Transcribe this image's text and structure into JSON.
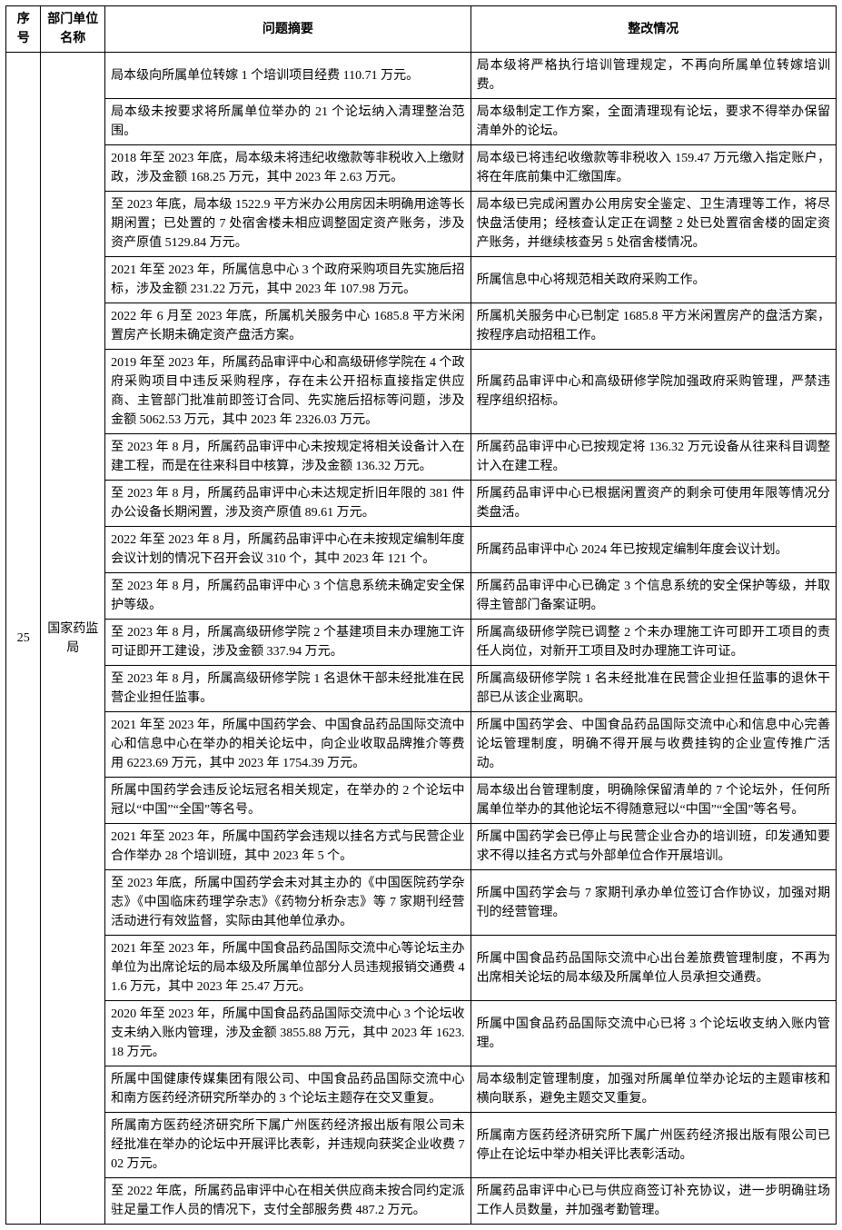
{
  "headers": {
    "seq": "序号",
    "dept": "部门单位名称",
    "issue": "问题摘要",
    "rectify": "整改情况"
  },
  "seq_value": "25",
  "dept_value": "国家药监局",
  "rows": [
    {
      "issue": "局本级向所属单位转嫁 1 个培训项目经费 110.71 万元。",
      "rectify": "局本级将严格执行培训管理规定，不再向所属单位转嫁培训费。"
    },
    {
      "issue": "局本级未按要求将所属单位举办的 21 个论坛纳入清理整治范围。",
      "rectify": "局本级制定工作方案，全面清理现有论坛，要求不得举办保留清单外的论坛。"
    },
    {
      "issue": "2018 年至 2023 年底，局本级未将违纪收缴款等非税收入上缴财政，涉及金额 168.25 万元，其中 2023 年 2.63 万元。",
      "rectify": "局本级已将违纪收缴款等非税收入 159.47 万元缴入指定账户，将在年底前集中汇缴国库。"
    },
    {
      "issue": "至 2023 年底，局本级 1522.9 平方米办公用房因未明确用途等长期闲置；已处置的 7 处宿舍楼未相应调整固定资产账务，涉及资产原值 5129.84 万元。",
      "rectify": "局本级已完成闲置办公用房安全鉴定、卫生清理等工作，将尽快盘活使用；经核查认定正在调整 2 处已处置宿舍楼的固定资产账务，并继续核查另 5 处宿舍楼情况。"
    },
    {
      "issue": "2021 年至 2023 年，所属信息中心 3 个政府采购项目先实施后招标，涉及金额 231.22 万元，其中 2023 年 107.98 万元。",
      "rectify": "所属信息中心将规范相关政府采购工作。"
    },
    {
      "issue": "2022 年 6 月至 2023 年底，所属机关服务中心 1685.8 平方米闲置房产长期未确定资产盘活方案。",
      "rectify": "所属机关服务中心已制定 1685.8 平方米闲置房产的盘活方案，按程序启动招租工作。"
    },
    {
      "issue": "2019 年至 2023 年，所属药品审评中心和高级研修学院在 4 个政府采购项目中违反采购程序，存在未公开招标直接指定供应商、主管部门批准前即签订合同、先实施后招标等问题，涉及金额 5062.53 万元，其中 2023 年 2326.03 万元。",
      "rectify": "所属药品审评中心和高级研修学院加强政府采购管理，严禁违程序组织招标。"
    },
    {
      "issue": "至 2023 年 8 月，所属药品审评中心未按规定将相关设备计入在建工程，而是在往来科目中核算，涉及金额 136.32 万元。",
      "rectify": "所属药品审评中心已按规定将 136.32 万元设备从往来科目调整计入在建工程。"
    },
    {
      "issue": "至 2023 年 8 月，所属药品审评中心未达规定折旧年限的 381 件办公设备长期闲置，涉及资产原值 89.61 万元。",
      "rectify": "所属药品审评中心已根据闲置资产的剩余可使用年限等情况分类盘活。"
    },
    {
      "issue": "2022 年至 2023 年 8 月，所属药品审评中心在未按规定编制年度会议计划的情况下召开会议 310 个，其中 2023 年 121 个。",
      "rectify": "所属药品审评中心 2024 年已按规定编制年度会议计划。"
    },
    {
      "issue": "至 2023 年 8 月，所属药品审评中心 3 个信息系统未确定安全保护等级。",
      "rectify": "所属药品审评中心已确定 3 个信息系统的安全保护等级，并取得主管部门备案证明。"
    },
    {
      "issue": "至 2023 年 8 月，所属高级研修学院 2 个基建项目未办理施工许可证即开工建设，涉及金额 337.94 万元。",
      "rectify": "所属高级研修学院已调整 2 个未办理施工许可即开工项目的责任人岗位，对新开工项目及时办理施工许可证。"
    },
    {
      "issue": "至 2023 年 8 月，所属高级研修学院 1 名退休干部未经批准在民营企业担任监事。",
      "rectify": "所属高级研修学院 1 名未经批准在民营企业担任监事的退休干部已从该企业离职。"
    },
    {
      "issue": "2021 年至 2023 年，所属中国药学会、中国食品药品国际交流中心和信息中心在举办的相关论坛中，向企业收取品牌推介等费用 6223.69 万元，其中 2023 年 1754.39 万元。",
      "rectify": "所属中国药学会、中国食品药品国际交流中心和信息中心完善论坛管理制度，明确不得开展与收费挂钩的企业宣传推广活动。"
    },
    {
      "issue": "所属中国药学会违反论坛冠名相关规定，在举办的 2 个论坛中冠以“中国”“全国”等名号。",
      "rectify": "局本级出台管理制度，明确除保留清单的 7 个论坛外，任何所属单位举办的其他论坛不得随意冠以“中国”“全国”等名号。"
    },
    {
      "issue": "2021 年至 2023 年，所属中国药学会违规以挂名方式与民营企业合作举办 28 个培训班，其中 2023 年 5 个。",
      "rectify": "所属中国药学会已停止与民营企业合办的培训班，印发通知要求不得以挂名方式与外部单位合作开展培训。"
    },
    {
      "issue": "至 2023 年底，所属中国药学会未对其主办的《中国医院药学杂志》《中国临床药理学杂志》《药物分析杂志》等 7 家期刊经营活动进行有效监督，实际由其他单位承办。",
      "rectify": "所属中国药学会与 7 家期刊承办单位签订合作协议，加强对期刊的经营管理。"
    },
    {
      "issue": "2021 年至 2023 年，所属中国食品药品国际交流中心等论坛主办单位为出席论坛的局本级及所属单位部分人员违规报销交通费 41.6 万元，其中 2023 年 25.47 万元。",
      "rectify": "所属中国食品药品国际交流中心出台差旅费管理制度，不再为出席相关论坛的局本级及所属单位人员承担交通费。"
    },
    {
      "issue": "2020 年至 2023 年，所属中国食品药品国际交流中心 3 个论坛收支未纳入账内管理，涉及金额 3855.88 万元，其中 2023 年 1623.18 万元。",
      "rectify": "所属中国食品药品国际交流中心已将 3 个论坛收支纳入账内管理。"
    },
    {
      "issue": "所属中国健康传媒集团有限公司、中国食品药品国际交流中心和南方医药经济研究所举办的 3 个论坛主题存在交叉重复。",
      "rectify": "局本级制定管理制度，加强对所属单位举办论坛的主题审核和横向联系，避免主题交叉重复。"
    },
    {
      "issue": "所属南方医药经济研究所下属广州医药经济报出版有限公司未经批准在举办的论坛中开展评比表彰，并违规向获奖企业收费 702 万元。",
      "rectify": "所属南方医药经济研究所下属广州医药经济报出版有限公司已停止在论坛中举办相关评比表彰活动。"
    },
    {
      "issue": "至 2022 年底，所属药品审评中心在相关供应商未按合同约定派驻足量工作人员的情况下，支付全部服务费 487.2 万元。",
      "rectify": "所属药品审评中心已与供应商签订补充协议，进一步明确驻场工作人员数量，并加强考勤管理。"
    }
  ],
  "style": {
    "font_family": "SimSun",
    "font_size_pt": 10.5,
    "border_color": "#000000",
    "background_color": "#ffffff",
    "text_color": "#000000"
  }
}
